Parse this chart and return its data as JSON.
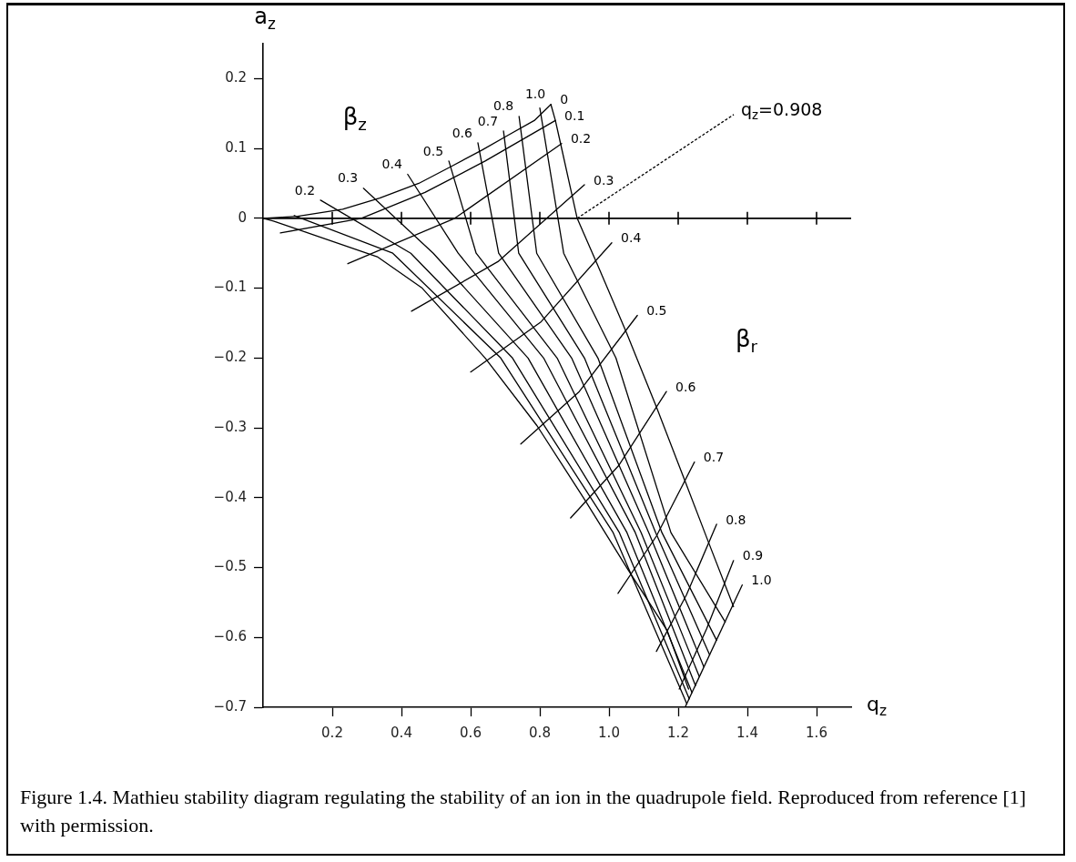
{
  "chart_data": {
    "type": "line",
    "xlabel": "q$_{z}$",
    "ylabel": "a$_{z}$",
    "xlim": [
      0,
      1.7
    ],
    "xticks": [
      0.2,
      0.4,
      0.6,
      0.8,
      {
        "value": 1,
        "label": "1.0"
      },
      1.2,
      1.4,
      1.6
    ],
    "ylim": [
      -0.7,
      0.25
    ],
    "yticks": [
      {
        "value": -0.7,
        "label": "−0.7"
      },
      {
        "value": -0.6,
        "label": "−0.6"
      },
      {
        "value": -0.5,
        "label": "−0.5"
      },
      {
        "value": -0.4,
        "label": "−0.4"
      },
      {
        "value": -0.3,
        "label": "−0.3"
      },
      {
        "value": -0.2,
        "label": "−0.2"
      },
      {
        "value": -0.1,
        "label": "−0.1"
      },
      0,
      0.1,
      0.2
    ],
    "marker": "none",
    "line_style": "solid",
    "ref_lines": [
      {
        "axis": "y",
        "value": 0,
        "color": "#000000"
      }
    ],
    "series": [
      {
        "name": "0",
        "color": "#000000",
        "x": [
          0,
          0.1,
          0.23,
          0.337,
          0.45,
          0.547,
          0.634,
          0.705,
          0.784,
          0.832
        ],
        "values": [
          0,
          0.003,
          0.013,
          0.029,
          0.05,
          0.075,
          0.098,
          0.118,
          0.14,
          0.163
        ]
      },
      {
        "color": "#000000",
        "x": [
          0,
          0.03,
          0.16,
          0.33,
          0.46,
          0.642,
          0.792,
          0.93,
          1.055,
          1.168,
          1.23
        ],
        "values": [
          0,
          -0.004,
          -0.026,
          -0.055,
          -0.1,
          -0.2,
          -0.297,
          -0.403,
          -0.503,
          -0.59,
          -0.674
        ]
      },
      {
        "name": "1.0",
        "color": "#000000",
        "x": [
          1.22,
          1.385
        ],
        "values": [
          -0.7,
          -0.525
        ]
      },
      {
        "name": "1.0",
        "color": "#000000",
        "x": [
          0.832,
          0.845,
          0.86,
          0.89,
          0.908,
          0.968,
          1.05,
          1.137,
          1.218,
          1.287,
          1.36
        ],
        "values": [
          0.163,
          0.14,
          0.107,
          0.04,
          0,
          -0.068,
          -0.163,
          -0.27,
          -0.374,
          -0.463,
          -0.556
        ]
      },
      {
        "name": "0.1",
        "color": "#000000",
        "x": [
          0.05,
          0.284,
          0.468,
          0.642,
          0.845
        ],
        "values": [
          -0.021,
          0,
          0.037,
          0.082,
          0.14
        ]
      },
      {
        "name": "0.2",
        "color": "#000000",
        "x": [
          0.245,
          0.554,
          0.863
        ],
        "values": [
          -0.065,
          0,
          0.107
        ]
      },
      {
        "name": "0.3",
        "color": "#000000",
        "x": [
          0.429,
          0.679,
          0.929
        ],
        "values": [
          -0.133,
          -0.062,
          0.048
        ]
      },
      {
        "name": "0.4",
        "color": "#000000",
        "x": [
          0.6,
          0.804,
          1.008
        ],
        "values": [
          -0.22,
          -0.148,
          -0.035
        ]
      },
      {
        "name": "0.5",
        "color": "#000000",
        "x": [
          0.745,
          0.914,
          1.082
        ],
        "values": [
          -0.323,
          -0.248,
          -0.139
        ]
      },
      {
        "name": "0.6",
        "color": "#000000",
        "x": [
          0.889,
          1.028,
          1.166
        ],
        "values": [
          -0.429,
          -0.354,
          -0.248
        ]
      },
      {
        "name": "0.7",
        "color": "#000000",
        "x": [
          1.026,
          1.137,
          1.247
        ],
        "values": [
          -0.537,
          -0.455,
          -0.349
        ]
      },
      {
        "name": "0.8",
        "color": "#000000",
        "x": [
          1.137,
          1.224,
          1.311
        ],
        "values": [
          -0.62,
          -0.539,
          -0.438
        ]
      },
      {
        "name": "0.9",
        "color": "#000000",
        "x": [
          1.203,
          1.282,
          1.36
        ],
        "values": [
          -0.674,
          -0.588,
          -0.49
        ]
      },
      {
        "color": "#000000",
        "x": [
          0.09,
          0.375,
          0.687,
          1.012,
          1.225
        ],
        "values": [
          0.004,
          -0.05,
          -0.2,
          -0.45,
          -0.695
        ]
      },
      {
        "name": "0.2",
        "color": "#000000",
        "x": [
          0.166,
          0.427,
          0.721,
          1.03,
          1.232
        ],
        "values": [
          0.026,
          -0.05,
          -0.2,
          -0.45,
          -0.688
        ]
      },
      {
        "name": "0.3",
        "color": "#000000",
        "x": [
          0.29,
          0.492,
          0.766,
          1.052,
          1.24
        ],
        "values": [
          0.043,
          -0.05,
          -0.2,
          -0.45,
          -0.679
        ]
      },
      {
        "name": "0.4",
        "color": "#000000",
        "x": [
          0.418,
          0.564,
          0.811,
          1.076,
          1.25
        ],
        "values": [
          0.063,
          -0.05,
          -0.2,
          -0.45,
          -0.669
        ]
      },
      {
        "name": "0.5",
        "color": "#000000",
        "x": [
          0.537,
          0.616,
          0.85,
          1.093,
          1.261
        ],
        "values": [
          0.082,
          -0.05,
          -0.2,
          -0.45,
          -0.656
        ]
      },
      {
        "name": "0.6",
        "color": "#000000",
        "x": [
          0.621,
          0.681,
          0.892,
          1.115,
          1.274
        ],
        "values": [
          0.108,
          -0.05,
          -0.2,
          -0.45,
          -0.642
        ]
      },
      {
        "name": "0.7",
        "color": "#000000",
        "x": [
          0.695,
          0.739,
          0.929,
          1.135,
          1.291
        ],
        "values": [
          0.125,
          -0.05,
          -0.2,
          -0.45,
          -0.625
        ]
      },
      {
        "name": "0.8",
        "color": "#000000",
        "x": [
          0.74,
          0.791,
          0.968,
          1.153,
          1.311
        ],
        "values": [
          0.146,
          -0.05,
          -0.2,
          -0.45,
          -0.604
        ]
      },
      {
        "color": "#000000",
        "x": [
          0.8,
          0.869,
          1.02,
          1.179,
          1.336
        ],
        "values": [
          0.158,
          -0.05,
          -0.2,
          -0.45,
          -0.578
        ]
      }
    ],
    "annotations": [
      {
        "text": "q$_{z}$=0.908",
        "x": 0.908,
        "y": 0
      },
      "β$_{z}$",
      "β$_{r}$",
      "Figure 1.4. Mathieu stability diagram regulating the stability of an ion in the quadrupole field. Reproduced from reference [1] with permission."
    ]
  }
}
